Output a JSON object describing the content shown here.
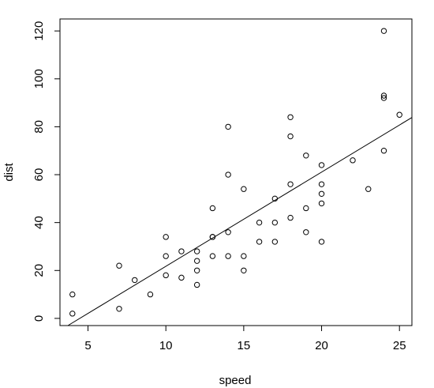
{
  "chart_data": {
    "type": "scatter",
    "title": "",
    "xlabel": "speed",
    "ylabel": "dist",
    "xlim": [
      3.2,
      25.8
    ],
    "ylim": [
      -3,
      125
    ],
    "xticks": [
      5,
      10,
      15,
      20,
      25
    ],
    "yticks": [
      0,
      20,
      40,
      60,
      80,
      100,
      120
    ],
    "grid": false,
    "legend": "none",
    "point_color": "#000000",
    "line_color": "#000000",
    "points": [
      [
        4,
        2
      ],
      [
        4,
        10
      ],
      [
        7,
        4
      ],
      [
        7,
        22
      ],
      [
        8,
        16
      ],
      [
        9,
        10
      ],
      [
        10,
        18
      ],
      [
        10,
        26
      ],
      [
        10,
        34
      ],
      [
        11,
        17
      ],
      [
        11,
        28
      ],
      [
        12,
        14
      ],
      [
        12,
        20
      ],
      [
        12,
        24
      ],
      [
        12,
        28
      ],
      [
        13,
        26
      ],
      [
        13,
        34
      ],
      [
        13,
        34
      ],
      [
        13,
        46
      ],
      [
        14,
        26
      ],
      [
        14,
        36
      ],
      [
        14,
        60
      ],
      [
        14,
        80
      ],
      [
        15,
        20
      ],
      [
        15,
        26
      ],
      [
        15,
        54
      ],
      [
        16,
        32
      ],
      [
        16,
        40
      ],
      [
        17,
        32
      ],
      [
        17,
        40
      ],
      [
        17,
        50
      ],
      [
        18,
        42
      ],
      [
        18,
        56
      ],
      [
        18,
        76
      ],
      [
        18,
        84
      ],
      [
        19,
        36
      ],
      [
        19,
        46
      ],
      [
        19,
        68
      ],
      [
        20,
        32
      ],
      [
        20,
        48
      ],
      [
        20,
        52
      ],
      [
        20,
        56
      ],
      [
        20,
        64
      ],
      [
        22,
        66
      ],
      [
        23,
        54
      ],
      [
        24,
        70
      ],
      [
        24,
        92
      ],
      [
        24,
        93
      ],
      [
        24,
        120
      ],
      [
        25,
        85
      ]
    ],
    "regression_line": {
      "intercept": -17.579,
      "slope": 3.932
    }
  }
}
